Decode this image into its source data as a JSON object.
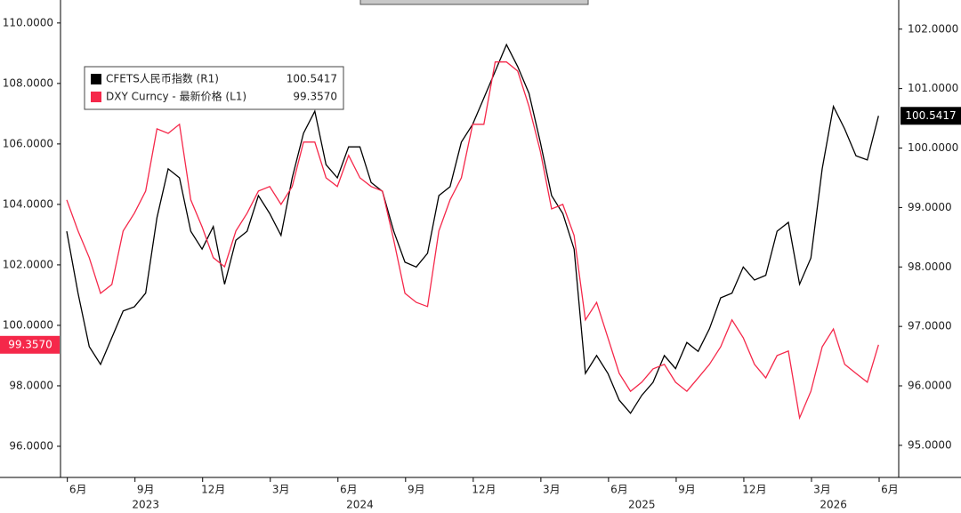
{
  "chart_data": {
    "type": "line",
    "categories": [
      null,
      "6月",
      null,
      null,
      null,
      null,
      null,
      "9月",
      null,
      null,
      null,
      null,
      null,
      "12月",
      null,
      null,
      null,
      null,
      null,
      "3月",
      null,
      null,
      null,
      null,
      null,
      "6月",
      null,
      null,
      null,
      null,
      null,
      "9月",
      null,
      null,
      null,
      null,
      null,
      "12月",
      null,
      null,
      null,
      null,
      null,
      "3月",
      null,
      null,
      null,
      null,
      null,
      "6月",
      null,
      null,
      null,
      null,
      null,
      "9月",
      null,
      null,
      null,
      null,
      null,
      "12月",
      null,
      null,
      null,
      null,
      null,
      "3月",
      null,
      null,
      null,
      null,
      null,
      "6月"
    ],
    "categories_year": [
      null,
      null,
      null,
      null,
      null,
      null,
      null,
      "2023",
      null,
      null,
      null,
      null,
      null,
      null,
      null,
      null,
      null,
      null,
      null,
      null,
      null,
      null,
      null,
      null,
      null,
      null,
      "2024",
      null,
      null,
      null,
      null,
      null,
      null,
      null,
      null,
      null,
      null,
      null,
      null,
      null,
      null,
      null,
      null,
      null,
      null,
      null,
      null,
      null,
      null,
      null,
      null,
      "2025",
      null,
      null,
      null,
      null,
      null,
      null,
      null,
      null,
      null,
      null,
      null,
      null,
      null,
      null,
      null,
      null,
      "2026",
      null,
      null,
      null,
      null,
      null
    ],
    "series": [
      {
        "name": "CFETS人民币指数 (R1)",
        "color": "#000000",
        "axis": "y2",
        "last_value_label": "100.5417",
        "values": [
          98.6,
          97.56,
          96.66,
          96.36,
          96.81,
          97.26,
          97.33,
          97.56,
          98.83,
          99.65,
          99.5,
          98.6,
          98.3,
          98.68,
          97.71,
          98.45,
          98.6,
          99.2,
          98.9,
          98.53,
          99.5,
          100.25,
          100.62,
          99.72,
          99.5,
          100.02,
          100.02,
          99.42,
          99.27,
          98.6,
          98.08,
          98.0,
          98.23,
          99.2,
          99.35,
          100.1,
          100.4,
          100.84,
          101.29,
          101.74,
          101.37,
          100.92,
          100.1,
          99.2,
          98.9,
          98.3,
          96.21,
          96.51,
          96.21,
          95.76,
          95.54,
          95.84,
          96.06,
          96.51,
          96.29,
          96.73,
          96.58,
          96.96,
          97.48,
          97.56,
          98.0,
          97.78,
          97.86,
          98.6,
          98.75,
          97.71,
          98.15,
          99.65,
          100.7,
          100.32,
          99.87,
          99.8,
          100.5417,
          null
        ]
      },
      {
        "name": "DXY Curncy - 最新价格 (L1)",
        "color": "#f5284a",
        "axis": "y",
        "last_value_label": "99.3570",
        "values": [
          104.15,
          103.12,
          102.24,
          101.06,
          101.35,
          103.12,
          103.71,
          104.44,
          106.5,
          106.35,
          106.65,
          104.15,
          103.26,
          102.24,
          101.94,
          103.12,
          103.71,
          104.44,
          104.59,
          104.0,
          104.59,
          106.06,
          106.06,
          104.88,
          104.59,
          105.62,
          104.88,
          104.59,
          104.44,
          102.82,
          101.06,
          100.76,
          100.62,
          103.12,
          104.15,
          104.88,
          106.65,
          106.65,
          108.71,
          108.71,
          108.41,
          107.24,
          105.76,
          103.85,
          104.0,
          102.97,
          100.18,
          100.76,
          99.59,
          98.41,
          97.82,
          98.12,
          98.56,
          98.71,
          98.12,
          97.82,
          98.26,
          98.71,
          99.29,
          100.18,
          99.59,
          98.71,
          98.26,
          99.0,
          99.15,
          96.94,
          97.82,
          99.29,
          99.88,
          98.71,
          98.41,
          98.12,
          99.357,
          null
        ]
      }
    ],
    "ylim": [
      94.97,
      110.76
    ],
    "yticks": [
      {
        "value": 96,
        "label": "96.0000"
      },
      {
        "value": 98,
        "label": "98.0000"
      },
      {
        "value": 100,
        "label": "100.0000"
      },
      {
        "value": 102,
        "label": "102.0000"
      },
      {
        "value": 104,
        "label": "104.0000"
      },
      {
        "value": 106,
        "label": "106.0000"
      },
      {
        "value": 108,
        "label": "108.0000"
      },
      {
        "value": 110,
        "label": "110.0000"
      }
    ],
    "y2lim": [
      94.46,
      102.49
    ],
    "y2ticks": [
      {
        "value": 95,
        "label": "95.0000"
      },
      {
        "value": 96,
        "label": "96.0000"
      },
      {
        "value": 97,
        "label": "97.0000"
      },
      {
        "value": 98,
        "label": "98.0000"
      },
      {
        "value": 99,
        "label": "99.0000"
      },
      {
        "value": 100,
        "label": "100.0000"
      },
      {
        "value": 101,
        "label": "101.0000"
      },
      {
        "value": 102,
        "label": "102.0000"
      }
    ],
    "grid": false
  }
}
